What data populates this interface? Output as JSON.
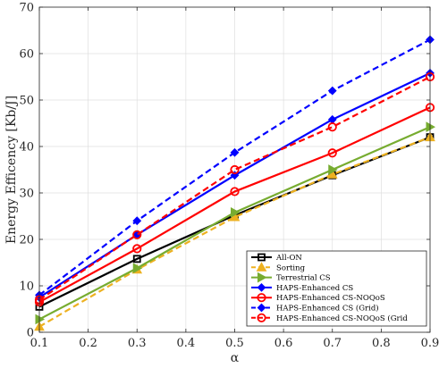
{
  "chart_data": {
    "type": "line",
    "xlabel": "α",
    "ylabel": "Energy Efficency [Kb/J]",
    "xlim": [
      0.1,
      0.9
    ],
    "ylim": [
      0,
      70
    ],
    "xticks": [
      0.1,
      0.2,
      0.3,
      0.4,
      0.5,
      0.6,
      0.7,
      0.8,
      0.9
    ],
    "yticks": [
      0,
      10,
      20,
      30,
      40,
      50,
      60,
      70
    ],
    "xtick_labels": [
      "0.1",
      "0.2",
      "0.3",
      "0.4",
      "0.5",
      "0.6",
      "0.7",
      "0.8",
      "0.9"
    ],
    "ytick_labels": [
      "0",
      "10",
      "20",
      "30",
      "40",
      "50",
      "60",
      "70"
    ],
    "grid": true,
    "legend_position": "bottom-right",
    "x": [
      0.1,
      0.3,
      0.5,
      0.7,
      0.9
    ],
    "series": [
      {
        "name": "All-ON",
        "values": [
          5.5,
          15.8,
          25.2,
          33.8,
          42.0
        ],
        "color": "#000000",
        "dash": "solid",
        "marker": "square"
      },
      {
        "name": "Sorting",
        "values": [
          1.2,
          13.5,
          24.8,
          34.0,
          42.0
        ],
        "color": "#EDB120",
        "dash": "dashed",
        "marker": "triangle-up"
      },
      {
        "name": "Terrestrial CS",
        "values": [
          2.8,
          13.8,
          25.8,
          35.0,
          44.2
        ],
        "color": "#77AC30",
        "dash": "solid",
        "marker": "triangle-right"
      },
      {
        "name": "HAPS-Enhanced CS",
        "values": [
          7.5,
          21.0,
          33.8,
          45.8,
          55.8
        ],
        "color": "#0000FF",
        "dash": "solid",
        "marker": "diamond"
      },
      {
        "name": "HAPS-Enhanced CS-NOQoS",
        "values": [
          6.5,
          18.0,
          30.3,
          38.6,
          48.4
        ],
        "color": "#FF0000",
        "dash": "solid",
        "marker": "circle"
      },
      {
        "name": "HAPS-Enhanced CS (Grid)",
        "values": [
          8.0,
          24.0,
          38.7,
          52.0,
          63.0
        ],
        "color": "#0000FF",
        "dash": "dashed",
        "marker": "diamond"
      },
      {
        "name": "HAPS-Enhanced CS-NOQoS (Grid",
        "values": [
          7.0,
          21.0,
          35.0,
          44.2,
          55.0
        ],
        "color": "#FF0000",
        "dash": "dashed",
        "marker": "circle"
      }
    ]
  }
}
